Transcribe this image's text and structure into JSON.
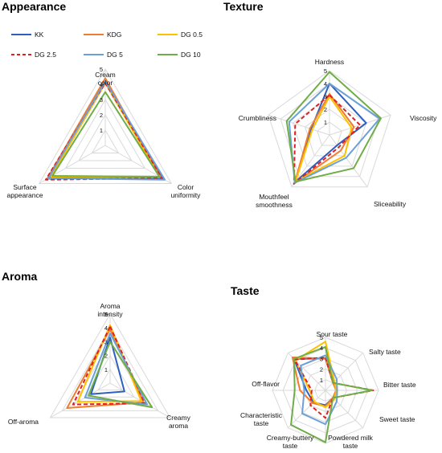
{
  "series_styles": [
    {
      "name": "KK",
      "color": "#2e5fbf",
      "dash": false
    },
    {
      "name": "KDG",
      "color": "#ed7d31",
      "dash": false
    },
    {
      "name": "DG 0.5",
      "color": "#ffc000",
      "dash": false
    },
    {
      "name": "DG 2.5",
      "color": "#e02020",
      "dash": true
    },
    {
      "name": "DG 5",
      "color": "#6aa0d8",
      "dash": false
    },
    {
      "name": "DG 10",
      "color": "#70ad47",
      "dash": false
    }
  ],
  "chart_data": [
    {
      "type": "radar",
      "title": "Appearance",
      "axes": [
        "Cream color",
        "Color uniformity",
        "Surface appearance"
      ],
      "ticks": [
        "1",
        "2",
        "3",
        "4",
        "5"
      ],
      "range": [
        0,
        5
      ],
      "series": [
        {
          "name": "KK",
          "values": [
            4.2,
            4.4,
            4.2
          ]
        },
        {
          "name": "KDG",
          "values": [
            4.4,
            4.2,
            4.4
          ]
        },
        {
          "name": "DG 0.5",
          "values": [
            4.1,
            4.1,
            4.1
          ]
        },
        {
          "name": "DG 2.5",
          "values": [
            4.1,
            4.3,
            4.5
          ]
        },
        {
          "name": "DG 5",
          "values": [
            4.2,
            4.5,
            4.3
          ]
        },
        {
          "name": "DG 10",
          "values": [
            3.5,
            4.1,
            4.0
          ]
        }
      ]
    },
    {
      "type": "radar",
      "title": "Texture",
      "axes": [
        "Hardness",
        "Viscosity",
        "Sliceability",
        "Mouthfeel smoothness",
        "Crumbliness"
      ],
      "ticks": [
        "1",
        "2",
        "3",
        "4",
        "5"
      ],
      "range": [
        0,
        5
      ],
      "series": [
        {
          "name": "KK",
          "values": [
            4.0,
            3.0,
            1.0,
            4.5,
            1.5
          ]
        },
        {
          "name": "KDG",
          "values": [
            3.2,
            2.0,
            1.5,
            4.6,
            1.6
          ]
        },
        {
          "name": "DG 0.5",
          "values": [
            3.0,
            1.8,
            2.0,
            4.5,
            1.4
          ]
        },
        {
          "name": "DG 2.5",
          "values": [
            3.1,
            2.5,
            1.2,
            4.7,
            2.8
          ]
        },
        {
          "name": "DG 5",
          "values": [
            4.0,
            4.1,
            2.2,
            4.6,
            3.3
          ]
        },
        {
          "name": "DG 10",
          "values": [
            4.9,
            4.2,
            3.2,
            4.5,
            3.5
          ]
        }
      ]
    },
    {
      "type": "radar",
      "title": "Aroma",
      "axes": [
        "Aroma intensity",
        "Creamy aroma",
        "Off-aroma"
      ],
      "ticks": [
        "1",
        "2",
        "3",
        "4",
        "5"
      ],
      "range": [
        0,
        5
      ],
      "series": [
        {
          "name": "KK",
          "values": [
            3.3,
            1.2,
            1.6
          ]
        },
        {
          "name": "KDG",
          "values": [
            3.9,
            2.8,
            3.6
          ]
        },
        {
          "name": "DG 0.5",
          "values": [
            4.2,
            2.6,
            2.7
          ]
        },
        {
          "name": "DG 2.5",
          "values": [
            4.1,
            2.9,
            3.1
          ]
        },
        {
          "name": "DG 5",
          "values": [
            3.6,
            3.1,
            2.1
          ]
        },
        {
          "name": "DG 10",
          "values": [
            3.0,
            3.5,
            1.8
          ]
        }
      ]
    },
    {
      "type": "radar",
      "title": "Taste",
      "axes": [
        "Sour taste",
        "Salty taste",
        "Bitter taste",
        "Sweet taste",
        "Powdered milk taste",
        "Creamy-buttery taste",
        "Characteristic taste",
        "Off-flavor"
      ],
      "ticks": [
        "1",
        "2",
        "3",
        "4",
        "5"
      ],
      "range": [
        0,
        5
      ],
      "series": [
        {
          "name": "KK",
          "values": [
            3.0,
            1.1,
            1.0,
            1.0,
            1.4,
            1.6,
            1.8,
            4.2
          ]
        },
        {
          "name": "KDG",
          "values": [
            3.0,
            1.0,
            1.0,
            1.0,
            1.5,
            1.7,
            2.4,
            4.4
          ]
        },
        {
          "name": "DG 0.5",
          "values": [
            4.6,
            1.2,
            1.0,
            1.2,
            1.6,
            1.5,
            1.5,
            4.0
          ]
        },
        {
          "name": "DG 2.5",
          "values": [
            3.1,
            1.0,
            4.5,
            1.0,
            2.6,
            2.0,
            1.3,
            4.1
          ]
        },
        {
          "name": "DG 5",
          "values": [
            3.3,
            1.5,
            1.1,
            1.5,
            3.2,
            3.1,
            2.0,
            3.3
          ]
        },
        {
          "name": "DG 10",
          "values": [
            4.1,
            1.0,
            4.4,
            1.0,
            4.9,
            4.6,
            2.9,
            4.2
          ]
        }
      ]
    }
  ]
}
